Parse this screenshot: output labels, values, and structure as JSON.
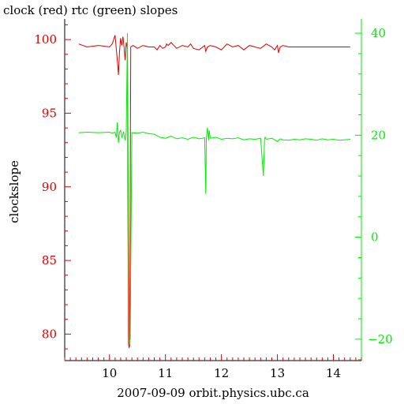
{
  "chart_data": {
    "type": "line",
    "title": "clock (red) rtc (green) slopes",
    "xlabel": "2007-09-09 orbit.physics.ubc.ca",
    "ylabel": "clockslope",
    "xlim": [
      9.2,
      14.5
    ],
    "ylim_left": [
      78.2,
      101.4
    ],
    "ylim_right": [
      -24.2,
      42.8
    ],
    "x_ticks": [
      10,
      11,
      12,
      13,
      14
    ],
    "y_ticks_left": [
      80,
      85,
      90,
      95,
      100
    ],
    "y_ticks_right": [
      -20,
      0,
      20,
      40
    ],
    "colors": {
      "clock": "#dd0000",
      "rtc": "#00ee00",
      "axis": "#000000"
    },
    "series": [
      {
        "name": "clock",
        "axis": "left",
        "color": "#dd0000",
        "x": [
          9.45,
          9.6,
          9.8,
          10.0,
          10.05,
          10.1,
          10.12,
          10.14,
          10.16,
          10.18,
          10.2,
          10.22,
          10.24,
          10.26,
          10.28,
          10.3,
          10.32,
          10.33,
          10.34,
          10.35,
          10.36,
          10.37,
          10.38,
          10.42,
          10.5,
          10.6,
          10.7,
          10.8,
          10.85,
          10.9,
          10.95,
          11.0,
          11.02,
          11.05,
          11.1,
          11.2,
          11.3,
          11.4,
          11.45,
          11.5,
          11.6,
          11.7,
          11.72,
          11.75,
          11.8,
          11.9,
          12.0,
          12.05,
          12.1,
          12.2,
          12.3,
          12.4,
          12.5,
          12.6,
          12.7,
          12.8,
          12.9,
          12.95,
          13.0,
          13.02,
          13.05,
          13.1,
          13.2,
          13.4,
          13.6,
          13.8,
          14.0,
          14.2,
          14.3
        ],
        "y": [
          99.7,
          99.5,
          99.6,
          99.5,
          99.7,
          100.3,
          99.4,
          98.6,
          97.6,
          99.2,
          100.1,
          99.6,
          100.2,
          99.5,
          98.6,
          99.8,
          99.4,
          88.2,
          79.3,
          79.1,
          79.2,
          88.5,
          99.5,
          99.6,
          99.4,
          99.6,
          99.5,
          99.5,
          99.3,
          99.6,
          99.4,
          99.5,
          99.7,
          99.6,
          99.8,
          99.4,
          99.6,
          99.5,
          99.7,
          99.4,
          99.3,
          99.6,
          99.2,
          99.5,
          99.6,
          99.5,
          99.3,
          99.5,
          99.7,
          99.5,
          99.6,
          99.3,
          99.6,
          99.5,
          99.4,
          99.7,
          99.5,
          99.3,
          99.6,
          99.1,
          99.5,
          99.6,
          99.5,
          99.5,
          99.5,
          99.5,
          99.5,
          99.5,
          99.5
        ]
      },
      {
        "name": "rtc",
        "axis": "right",
        "color": "#00ee00",
        "x": [
          9.45,
          9.6,
          9.8,
          10.0,
          10.05,
          10.1,
          10.12,
          10.14,
          10.16,
          10.18,
          10.2,
          10.22,
          10.25,
          10.28,
          10.3,
          10.32,
          10.33,
          10.34,
          10.35,
          10.36,
          10.37,
          10.4,
          10.5,
          10.6,
          10.7,
          10.8,
          10.9,
          11.0,
          11.1,
          11.2,
          11.3,
          11.4,
          11.5,
          11.6,
          11.7,
          11.72,
          11.73,
          11.75,
          11.77,
          11.78,
          11.8,
          11.9,
          12.0,
          12.1,
          12.2,
          12.3,
          12.4,
          12.5,
          12.6,
          12.7,
          12.75,
          12.77,
          12.78,
          12.8,
          12.9,
          13.0,
          13.05,
          13.1,
          13.2,
          13.3,
          13.4,
          13.5,
          13.6,
          13.7,
          13.8,
          13.9,
          14.0,
          14.1,
          14.2,
          14.3
        ],
        "y": [
          20.5,
          20.6,
          20.5,
          20.6,
          20.4,
          20.6,
          19.5,
          22.5,
          18.5,
          20.6,
          21.0,
          19.5,
          20.7,
          19.0,
          20.6,
          40.0,
          20.5,
          0.0,
          -21.0,
          -20.5,
          -20.0,
          20.5,
          20.4,
          20.6,
          20.3,
          20.2,
          19.6,
          19.4,
          19.8,
          19.3,
          19.5,
          19.2,
          19.6,
          19.3,
          19.5,
          8.5,
          19.4,
          21.5,
          19.0,
          21.0,
          19.4,
          19.6,
          19.2,
          19.4,
          19.3,
          19.5,
          19.1,
          19.3,
          19.2,
          19.4,
          12.0,
          19.3,
          19.6,
          19.2,
          19.4,
          18.8,
          19.3,
          19.1,
          19.0,
          19.2,
          19.1,
          19.3,
          19.2,
          19.0,
          19.3,
          19.1,
          19.2,
          19.0,
          19.1,
          19.2
        ]
      }
    ]
  }
}
